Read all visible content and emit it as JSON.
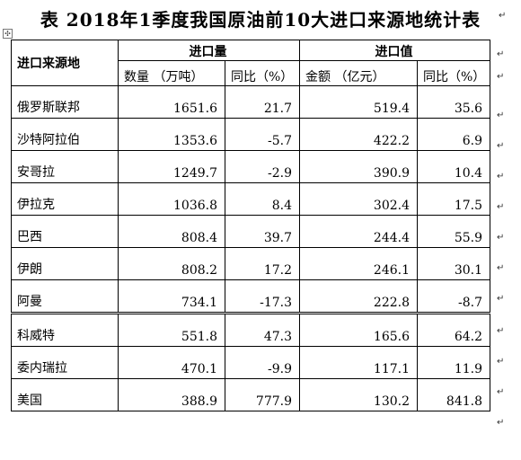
{
  "title": "表  2018年1季度我国原油前10大进口来源地统计表",
  "header": {
    "row_label": "进口来源地",
    "volume_group": "进口量",
    "value_group": "进口值",
    "volume_qty": "数量   （万吨）",
    "volume_yoy": "同比（%）",
    "value_amount": "金额   （亿元）",
    "value_yoy": "同比（%）"
  },
  "rows": [
    {
      "country": "俄罗斯联邦",
      "qty": "1651.6",
      "qty_yoy": "21.7",
      "amount": "519.4",
      "amount_yoy": "35.6"
    },
    {
      "country": "沙特阿拉伯",
      "qty": "1353.6",
      "qty_yoy": "-5.7",
      "amount": "422.2",
      "amount_yoy": "6.9"
    },
    {
      "country": "安哥拉",
      "qty": "1249.7",
      "qty_yoy": "-2.9",
      "amount": "390.9",
      "amount_yoy": "10.4"
    },
    {
      "country": "伊拉克",
      "qty": "1036.8",
      "qty_yoy": "8.4",
      "amount": "302.4",
      "amount_yoy": "17.5"
    },
    {
      "country": "巴西",
      "qty": "808.4",
      "qty_yoy": "39.7",
      "amount": "244.4",
      "amount_yoy": "55.9"
    },
    {
      "country": "伊朗",
      "qty": "808.2",
      "qty_yoy": "17.2",
      "amount": "246.1",
      "amount_yoy": "30.1"
    },
    {
      "country": "阿曼",
      "qty": "734.1",
      "qty_yoy": "-17.3",
      "amount": "222.8",
      "amount_yoy": "-8.7"
    },
    {
      "country": "科威特",
      "qty": "551.8",
      "qty_yoy": "47.3",
      "amount": "165.6",
      "amount_yoy": "64.2"
    },
    {
      "country": "委内瑞拉",
      "qty": "470.1",
      "qty_yoy": "-9.9",
      "amount": "117.1",
      "amount_yoy": "11.9"
    },
    {
      "country": "美国",
      "qty": "388.9",
      "qty_yoy": "777.9",
      "amount": "130.2",
      "amount_yoy": "841.8"
    }
  ],
  "icons": {
    "table_anchor": "move-handle-icon",
    "paragraph_mark": "paragraph-mark-icon",
    "anchor_glyph": "✣",
    "para_glyph": "↵"
  }
}
